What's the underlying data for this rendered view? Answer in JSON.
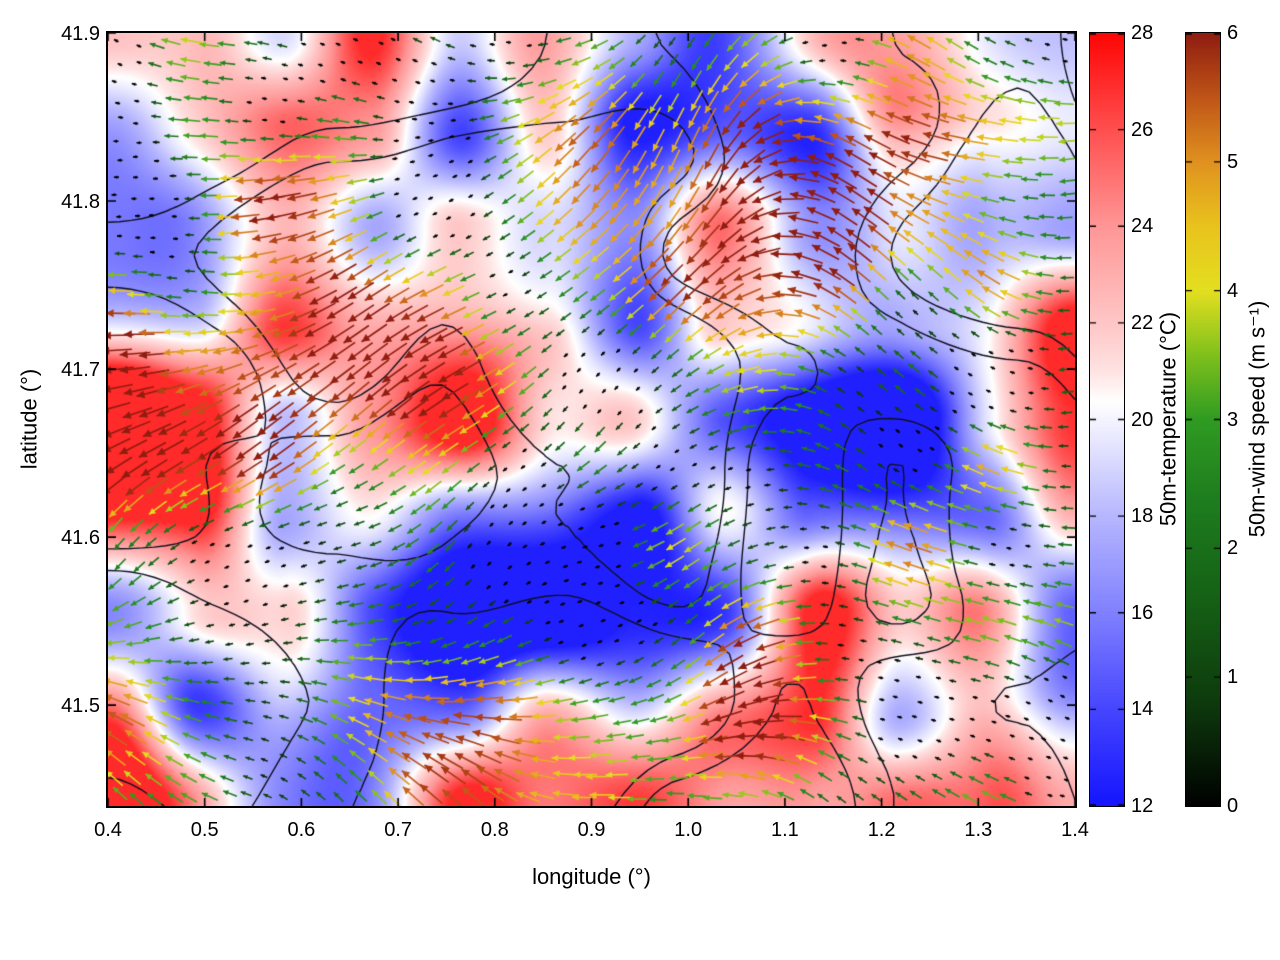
{
  "axes": {
    "xlabel": "longitude (°)",
    "ylabel": "latitude (°)",
    "xlim": [
      0.4,
      1.4
    ],
    "ylim": [
      41.44,
      41.9
    ],
    "x_ticks": {
      "values": [
        0.4,
        0.5,
        0.6,
        0.7,
        0.8,
        0.9,
        1.0,
        1.1,
        1.2,
        1.3,
        1.4
      ],
      "labels": [
        "0.4",
        "0.5",
        "0.6",
        "0.7",
        "0.8",
        "0.9",
        "1.0",
        "1.1",
        "1.2",
        "1.3",
        "1.4"
      ]
    },
    "y_ticks": {
      "values": [
        41.5,
        41.6,
        41.7,
        41.8,
        41.9
      ],
      "labels": [
        "41.5",
        "41.6",
        "41.7",
        "41.8",
        "41.9"
      ]
    }
  },
  "colorbars": {
    "temperature": {
      "label": "50m-temperature (°C)",
      "min": 12,
      "max": 28,
      "ticks": {
        "values": [
          12,
          14,
          16,
          18,
          20,
          22,
          24,
          26,
          28
        ],
        "labels": [
          "12",
          "14",
          "16",
          "18",
          "20",
          "22",
          "24",
          "26",
          "28"
        ]
      },
      "colormap": [
        {
          "v": 12,
          "c": "#1414ff"
        },
        {
          "v": 14,
          "c": "#4545ff"
        },
        {
          "v": 16,
          "c": "#8080ff"
        },
        {
          "v": 18,
          "c": "#b6b6ff"
        },
        {
          "v": 19.6,
          "c": "#e8e8ff"
        },
        {
          "v": 20.4,
          "c": "#ffffff"
        },
        {
          "v": 21,
          "c": "#ffe3e3"
        },
        {
          "v": 22,
          "c": "#ffc6c6"
        },
        {
          "v": 24,
          "c": "#ff9696"
        },
        {
          "v": 26,
          "c": "#ff4f4f"
        },
        {
          "v": 28,
          "c": "#ff0505"
        }
      ]
    },
    "wind_speed": {
      "label": "50m-wind speed (m s⁻¹)",
      "min": 0,
      "max": 6,
      "ticks": {
        "values": [
          0,
          1,
          2,
          3,
          4,
          5,
          6
        ],
        "labels": [
          "0",
          "1",
          "2",
          "3",
          "4",
          "5",
          "6"
        ]
      },
      "colormap": [
        {
          "v": 0,
          "c": "#000000"
        },
        {
          "v": 0.8,
          "c": "#0d3a0d"
        },
        {
          "v": 1.6,
          "c": "#156015"
        },
        {
          "v": 2.4,
          "c": "#1e7e1e"
        },
        {
          "v": 3.0,
          "c": "#2f9b22"
        },
        {
          "v": 3.5,
          "c": "#7fc01c"
        },
        {
          "v": 4.0,
          "c": "#e3df1f"
        },
        {
          "v": 4.5,
          "c": "#e9c31d"
        },
        {
          "v": 5.0,
          "c": "#e0921f"
        },
        {
          "v": 5.5,
          "c": "#bf5517"
        },
        {
          "v": 6,
          "c": "#8f1d10"
        }
      ]
    }
  },
  "chart_data": {
    "type": "heatmap",
    "overlay": "quiver",
    "title": "",
    "xlabel": "longitude (°)",
    "ylabel": "latitude (°)",
    "xlim": [
      0.4,
      1.4
    ],
    "ylim": [
      41.44,
      41.9
    ],
    "background_field": {
      "name": "50m-temperature",
      "units": "°C",
      "range": [
        12,
        28
      ],
      "pattern": "patchy field of warm pink/red pools (22-27 °C, strongest red pocket ~27 °C near lon 0.8, lat 41.48) interleaved with cool pale-blue/lavender bands (15-19 °C) through the centre and edges"
    },
    "vector_field": {
      "name": "50m-wind",
      "units": "m s⁻¹",
      "speed_range": [
        0,
        6
      ],
      "dominant_direction": "easterly flow: arrows point broadly toward the west with local meanders",
      "direction_spread_deg": 75,
      "typical_speed": "broad dark-red/orange streams at 5-6 m s⁻¹ and yellow streams at ~4 m s⁻¹ across the map; green 2-3 m s⁻¹ patches on the eastern and south-western edges; near-calm black arrows in the south-east corner"
    },
    "contours": {
      "style": "thin black irregular boundary/terrain contour lines crossing the map"
    },
    "render": {
      "seed": 7,
      "arrow_grid": [
        52,
        40
      ]
    }
  }
}
